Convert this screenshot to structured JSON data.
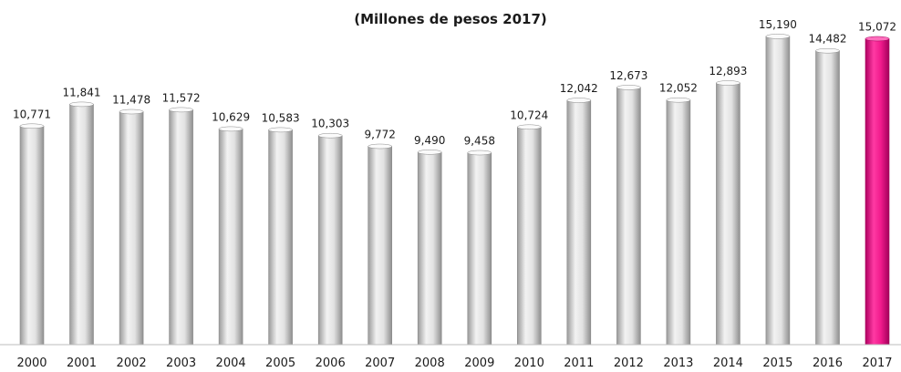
{
  "chart_data": {
    "type": "bar",
    "title": "(Millones de pesos 2017)",
    "categories": [
      "2000",
      "2001",
      "2002",
      "2003",
      "2004",
      "2005",
      "2006",
      "2007",
      "2008",
      "2009",
      "2010",
      "2011",
      "2012",
      "2013",
      "2014",
      "2015",
      "2016",
      "2017"
    ],
    "values": [
      10771,
      11841,
      11478,
      11572,
      10629,
      10583,
      10303,
      9772,
      9490,
      9458,
      10724,
      12042,
      12673,
      12052,
      12893,
      15190,
      14482,
      15072
    ],
    "value_labels": [
      "10,771",
      "11,841",
      "11,478",
      "11,572",
      "10,629",
      "10,583",
      "10,303",
      "9,772",
      "9,490",
      "9,458",
      "10,724",
      "12,042",
      "12,673",
      "12,052",
      "12,893",
      "15,190",
      "14,482",
      "15,072"
    ],
    "ylim": [
      0,
      15500
    ],
    "grid": false,
    "legend": "none",
    "colors": {
      "bar_default": "#cfcfcf",
      "bar_highlight": "#e0137f",
      "highlight_category": "2017"
    }
  }
}
